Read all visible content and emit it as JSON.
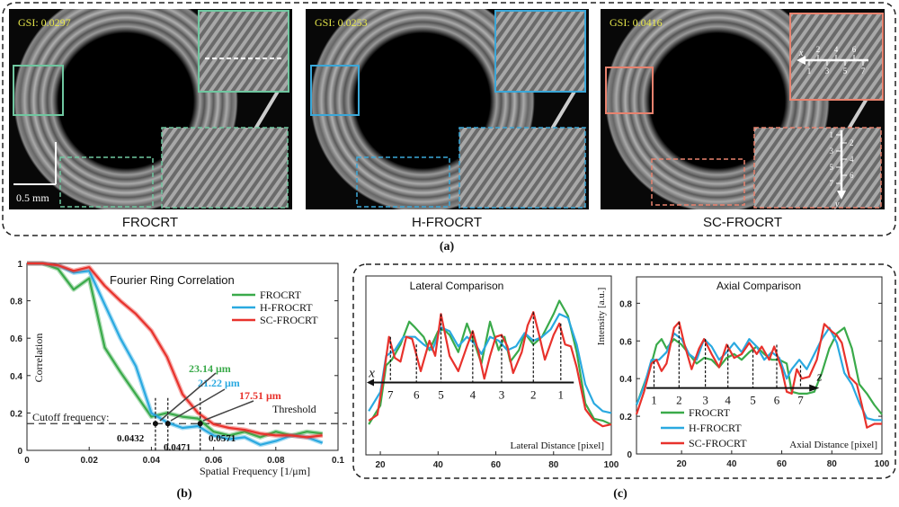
{
  "colors": {
    "frocrt": "#3aaa4a",
    "h_frocrt": "#2aa9e0",
    "sc_frocrt": "#e8322c",
    "gsi_text": "#e6e64a",
    "box_frocrt": "#6fc7a0",
    "box_h_frocrt": "#3aa7d8",
    "box_sc_frocrt": "#e8826e"
  },
  "panel_a": {
    "label": "(a)",
    "images": [
      {
        "name": "FROCRT",
        "gsi": "GSI: 0.0297",
        "scale_bar": "0.5 mm"
      },
      {
        "name": "H-FROCRT",
        "gsi": "GSI: 0.0253"
      },
      {
        "name": "SC-FROCRT",
        "gsi": "GSI: 0.0416",
        "inset_lateral": {
          "axis": "x",
          "markers": [
            "1",
            "2",
            "3",
            "4",
            "5",
            "6",
            "7"
          ]
        },
        "inset_axial": {
          "axis": "y",
          "markers": [
            "1",
            "2",
            "3",
            "4",
            "5",
            "6",
            "7"
          ]
        }
      }
    ]
  },
  "panel_b": {
    "label": "(b)"
  },
  "panel_c": {
    "label": "(c)"
  },
  "chart_data": [
    {
      "type": "line",
      "title": "Fourier Ring Correlation",
      "xlabel": "Spatial Frequency [1/μm]",
      "ylabel": "Correlation",
      "xlim": [
        0,
        0.1
      ],
      "ylim": [
        0,
        1
      ],
      "xticks": [
        "0",
        "0.02",
        "0.04",
        "0.06",
        "0.08",
        "0.1"
      ],
      "yticks": [
        "0",
        "0.2",
        "0.4",
        "0.6",
        "0.8",
        "1"
      ],
      "grid": false,
      "legend": "top-right",
      "x": [
        0,
        0.005,
        0.01,
        0.015,
        0.02,
        0.025,
        0.03,
        0.035,
        0.04,
        0.045,
        0.05,
        0.055,
        0.06,
        0.065,
        0.07,
        0.075,
        0.08,
        0.085,
        0.09,
        0.095
      ],
      "series": [
        {
          "name": "FROCRT",
          "values": [
            1,
            1,
            0.97,
            0.86,
            0.92,
            0.55,
            0.42,
            0.3,
            0.18,
            0.2,
            0.18,
            0.17,
            0.1,
            0.08,
            0.1,
            0.07,
            0.1,
            0.08,
            0.1,
            0.09
          ]
        },
        {
          "name": "H-FROCRT",
          "values": [
            1,
            1,
            0.99,
            0.95,
            0.96,
            0.78,
            0.6,
            0.45,
            0.2,
            0.15,
            0.12,
            0.13,
            0.08,
            0.06,
            0.07,
            0.03,
            0.05,
            0.08,
            0.07,
            0.04
          ]
        },
        {
          "name": "SC-FROCRT",
          "values": [
            1,
            1,
            0.99,
            0.96,
            0.98,
            0.88,
            0.8,
            0.73,
            0.64,
            0.5,
            0.3,
            0.2,
            0.14,
            0.12,
            0.11,
            0.09,
            0.08,
            0.08,
            0.07,
            0.08
          ]
        }
      ],
      "threshold": {
        "label": "Threshold",
        "value": 0.143
      },
      "cutoff_label": "Cutoff frequency:",
      "cutoffs": [
        {
          "series": "FROCRT",
          "frequency": "0.0432",
          "resolution": "23.14 μm",
          "x": 0.0413
        },
        {
          "series": "H-FROCRT",
          "frequency": "0.0471",
          "resolution": "21.22 μm",
          "x": 0.0453
        },
        {
          "series": "SC-FROCRT",
          "frequency": "0.0571",
          "resolution": "17.51 μm",
          "x": 0.0557
        }
      ]
    },
    {
      "type": "line",
      "title": "Lateral Comparison",
      "xlabel": "Lateral Distance [pixel]",
      "ylabel": "Intensity [a.u.]",
      "xlim": [
        15,
        100
      ],
      "ylim": [
        0,
        0.94
      ],
      "xticks": [
        "20",
        "40",
        "60",
        "80",
        "100"
      ],
      "grid": false,
      "series": [
        {
          "name": "FROCRT",
          "x": [
            16,
            20,
            22,
            24,
            27,
            30,
            32,
            35,
            37,
            40,
            42,
            44,
            47,
            50,
            53,
            55,
            58,
            61,
            63,
            65,
            68,
            70,
            73,
            76,
            80,
            82,
            85,
            88,
            91,
            94,
            97,
            100
          ],
          "values": [
            0.16,
            0.26,
            0.47,
            0.5,
            0.58,
            0.7,
            0.67,
            0.62,
            0.55,
            0.65,
            0.66,
            0.63,
            0.54,
            0.69,
            0.57,
            0.48,
            0.7,
            0.55,
            0.62,
            0.49,
            0.55,
            0.64,
            0.58,
            0.62,
            0.74,
            0.81,
            0.73,
            0.54,
            0.27,
            0.19,
            0.18,
            0.16
          ]
        },
        {
          "name": "H-FROCRT",
          "x": [
            16,
            20,
            22,
            25,
            28,
            32,
            35,
            38,
            41,
            44,
            47,
            50,
            53,
            55,
            58,
            61,
            64,
            67,
            70,
            73,
            76,
            79,
            82,
            85,
            88,
            91,
            94,
            97,
            100
          ],
          "values": [
            0.23,
            0.33,
            0.52,
            0.55,
            0.62,
            0.62,
            0.58,
            0.55,
            0.67,
            0.65,
            0.57,
            0.62,
            0.58,
            0.53,
            0.62,
            0.6,
            0.55,
            0.57,
            0.64,
            0.6,
            0.62,
            0.66,
            0.74,
            0.72,
            0.58,
            0.37,
            0.27,
            0.23,
            0.22
          ]
        },
        {
          "name": "SC-FROCRT",
          "x": [
            16,
            19,
            21,
            23,
            25,
            27,
            29,
            31,
            34,
            37,
            39,
            41,
            44,
            47,
            50,
            52,
            54,
            56,
            58,
            60,
            62,
            64,
            66,
            69,
            71,
            73,
            75,
            77,
            80,
            82,
            84,
            86,
            88,
            91,
            94,
            97,
            100
          ],
          "values": [
            0.18,
            0.21,
            0.4,
            0.62,
            0.51,
            0.49,
            0.62,
            0.61,
            0.44,
            0.6,
            0.52,
            0.74,
            0.52,
            0.44,
            0.57,
            0.65,
            0.54,
            0.4,
            0.52,
            0.62,
            0.63,
            0.57,
            0.43,
            0.54,
            0.68,
            0.75,
            0.63,
            0.5,
            0.63,
            0.69,
            0.58,
            0.57,
            0.46,
            0.24,
            0.18,
            0.15,
            0.16
          ]
        }
      ],
      "direction_axis": "x",
      "markers": [
        {
          "label": "7",
          "x": 23.5,
          "peak": 0.62
        },
        {
          "label": "6",
          "x": 32.5,
          "peak": 0.58
        },
        {
          "label": "5",
          "x": 41,
          "peak": 0.74
        },
        {
          "label": "4",
          "x": 52,
          "peak": 0.65
        },
        {
          "label": "3",
          "x": 62,
          "peak": 0.63
        },
        {
          "label": "2",
          "x": 73,
          "peak": 0.75
        },
        {
          "label": "1",
          "x": 82.5,
          "peak": 0.69
        }
      ]
    },
    {
      "type": "line",
      "title": "Axial Comparison",
      "xlabel": "Axial Distance [pixel]",
      "xlim": [
        2,
        100
      ],
      "ylim": [
        0,
        0.94
      ],
      "xticks": [
        "20",
        "40",
        "60",
        "80",
        "100"
      ],
      "yticks": [
        "0",
        "0.2",
        "0.4",
        "0.6",
        "0.8"
      ],
      "grid": false,
      "legend": "bottom-left",
      "series": [
        {
          "name": "FROCRT",
          "x": [
            2,
            5,
            8,
            10,
            12,
            14,
            17,
            20,
            23,
            26,
            29,
            32,
            35,
            38,
            41,
            44,
            47,
            50,
            53,
            56,
            59,
            62,
            64,
            67,
            70,
            73,
            76,
            79,
            82,
            85,
            88,
            91,
            94,
            97,
            100
          ],
          "values": [
            0.26,
            0.37,
            0.48,
            0.58,
            0.61,
            0.56,
            0.61,
            0.58,
            0.53,
            0.48,
            0.51,
            0.5,
            0.46,
            0.51,
            0.53,
            0.5,
            0.54,
            0.57,
            0.53,
            0.5,
            0.5,
            0.48,
            0.33,
            0.32,
            0.32,
            0.33,
            0.43,
            0.56,
            0.64,
            0.67,
            0.56,
            0.37,
            0.32,
            0.26,
            0.21
          ]
        },
        {
          "name": "H-FROCRT",
          "x": [
            2,
            5,
            8,
            11,
            14,
            17,
            20,
            23,
            26,
            29,
            32,
            35,
            38,
            41,
            44,
            47,
            50,
            53,
            56,
            59,
            62,
            64,
            67,
            70,
            73,
            76,
            79,
            82,
            85,
            88,
            91,
            94,
            97,
            100
          ],
          "values": [
            0.26,
            0.36,
            0.5,
            0.5,
            0.54,
            0.64,
            0.61,
            0.53,
            0.5,
            0.61,
            0.57,
            0.5,
            0.54,
            0.59,
            0.54,
            0.61,
            0.57,
            0.5,
            0.54,
            0.51,
            0.4,
            0.45,
            0.5,
            0.45,
            0.53,
            0.61,
            0.67,
            0.59,
            0.43,
            0.37,
            0.27,
            0.19,
            0.18,
            0.18
          ]
        },
        {
          "name": "SC-FROCRT",
          "x": [
            2,
            5,
            8,
            10,
            12,
            14,
            17,
            19,
            21,
            24,
            27,
            29,
            32,
            35,
            38,
            41,
            44,
            47,
            50,
            52,
            55,
            57,
            60,
            62,
            64,
            66,
            68,
            71,
            74,
            77,
            80,
            82,
            84,
            87,
            90,
            92,
            94,
            97,
            100
          ],
          "values": [
            0.21,
            0.33,
            0.48,
            0.5,
            0.44,
            0.48,
            0.67,
            0.7,
            0.59,
            0.45,
            0.56,
            0.61,
            0.53,
            0.46,
            0.58,
            0.51,
            0.53,
            0.59,
            0.53,
            0.57,
            0.5,
            0.57,
            0.45,
            0.33,
            0.32,
            0.45,
            0.4,
            0.41,
            0.5,
            0.69,
            0.65,
            0.63,
            0.59,
            0.41,
            0.37,
            0.26,
            0.14,
            0.16,
            0.16
          ]
        }
      ],
      "direction_axis": "z",
      "markers": [
        {
          "label": "1",
          "x": 9,
          "peak": 0.49
        },
        {
          "label": "2",
          "x": 19,
          "peak": 0.7
        },
        {
          "label": "3",
          "x": 29.5,
          "peak": 0.61
        },
        {
          "label": "4",
          "x": 38.5,
          "peak": 0.58
        },
        {
          "label": "5",
          "x": 48.5,
          "peak": 0.55
        },
        {
          "label": "6",
          "x": 58,
          "peak": 0.58
        },
        {
          "label": "7",
          "x": 67.5,
          "peak": 0.47
        }
      ]
    }
  ]
}
